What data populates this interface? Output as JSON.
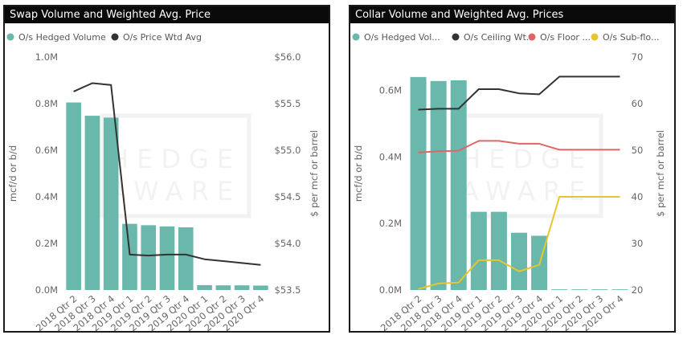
{
  "chart_data": [
    {
      "type": "bar",
      "title": "Swap Volume and Weighted Avg. Price",
      "categories": [
        "2018 Qtr 2",
        "2018 Qtr 3",
        "2018 Qtr 4",
        "2019 Qtr 1",
        "2019 Qtr 2",
        "2019 Qtr 3",
        "2019 Qtr 4",
        "2020 Qtr 1",
        "2020 Qtr 2",
        "2020 Qtr 3",
        "2020 Qtr 4"
      ],
      "ylabel": "mcf/d or b/d",
      "y2label": "$ per mcf or barrel",
      "ylim": [
        0,
        1000000
      ],
      "y2lim": [
        53.5,
        56.0
      ],
      "yticks": [
        {
          "value": 0,
          "label": "0.0M"
        },
        {
          "value": 200000,
          "label": "0.2M"
        },
        {
          "value": 400000,
          "label": "0.4M"
        },
        {
          "value": 600000,
          "label": "0.6M"
        },
        {
          "value": 800000,
          "label": "0.8M"
        },
        {
          "value": 1000000,
          "label": "1.0M"
        }
      ],
      "y2ticks": [
        {
          "value": 53.5,
          "label": "$53.5"
        },
        {
          "value": 54.0,
          "label": "$54.0"
        },
        {
          "value": 54.5,
          "label": "$54.5"
        },
        {
          "value": 55.0,
          "label": "$55.0"
        },
        {
          "value": 55.5,
          "label": "$55.5"
        },
        {
          "value": 56.0,
          "label": "$56.0"
        }
      ],
      "legend": [
        {
          "label": "O/s Hedged Volume",
          "color": "#69b8ab"
        },
        {
          "label": "O/s Price Wtd Avg",
          "color": "#333333"
        }
      ],
      "bars": {
        "name": "O/s Hedged Volume",
        "color": "#69b8ab",
        "values": [
          805000,
          748000,
          740000,
          284000,
          278000,
          273000,
          269000,
          21000,
          20000,
          20000,
          19000
        ]
      },
      "lines": [
        {
          "name": "O/s Price Wtd Avg",
          "color": "#333333",
          "axis": "y2",
          "values": [
            55.63,
            55.72,
            55.7,
            53.88,
            53.87,
            53.88,
            53.88,
            53.83,
            53.81,
            53.79,
            53.77
          ]
        }
      ]
    },
    {
      "type": "bar",
      "title": "Collar Volume and Weighted Avg. Prices",
      "categories": [
        "2018 Qtr 2",
        "2018 Qtr 3",
        "2018 Qtr 4",
        "2019 Qtr 1",
        "2019 Qtr 2",
        "2019 Qtr 3",
        "2019 Qtr 4",
        "2020 Qtr 1",
        "2020 Qtr 2",
        "2020 Qtr 3",
        "2020 Qtr 4"
      ],
      "ylabel": "mcf/d or b/d",
      "y2label": "$ per mcf or barrel",
      "ylim": [
        0,
        700000
      ],
      "y2lim": [
        20,
        70
      ],
      "yticks": [
        {
          "value": 0,
          "label": "0.0M"
        },
        {
          "value": 200000,
          "label": "0.2M"
        },
        {
          "value": 400000,
          "label": "0.4M"
        },
        {
          "value": 600000,
          "label": "0.6M"
        }
      ],
      "y2ticks": [
        {
          "value": 20,
          "label": "20"
        },
        {
          "value": 30,
          "label": "30"
        },
        {
          "value": 40,
          "label": "40"
        },
        {
          "value": 50,
          "label": "50"
        },
        {
          "value": 60,
          "label": "60"
        },
        {
          "value": 70,
          "label": "70"
        }
      ],
      "legend": [
        {
          "label": "O/s Hedged Vol...",
          "color": "#69b8ab"
        },
        {
          "label": "O/s Ceiling Wt...",
          "color": "#333333"
        },
        {
          "label": "O/s Floor ...",
          "color": "#e06666"
        },
        {
          "label": "O/s Sub-flo...",
          "color": "#e6c62c"
        }
      ],
      "bars": {
        "name": "O/s Hedged Volume",
        "color": "#69b8ab",
        "values": [
          640000,
          628000,
          630000,
          235000,
          235000,
          172000,
          163000,
          2000,
          2000,
          2000,
          2000
        ]
      },
      "lines": [
        {
          "name": "O/s Ceiling Wtd Avg",
          "color": "#333333",
          "axis": "y2",
          "values": [
            58.7,
            58.9,
            58.9,
            63.1,
            63.1,
            62.2,
            62.0,
            65.8,
            65.8,
            65.8,
            65.8
          ]
        },
        {
          "name": "O/s Floor Wtd Avg",
          "color": "#e06666",
          "axis": "y2",
          "values": [
            49.5,
            49.8,
            49.9,
            52.0,
            52.0,
            51.4,
            51.4,
            50.1,
            50.1,
            50.1,
            50.1
          ]
        },
        {
          "name": "O/s Sub-floor Wtd Avg",
          "color": "#e6c62c",
          "axis": "y2",
          "values": [
            20.2,
            21.4,
            21.6,
            26.4,
            26.4,
            24.0,
            25.4,
            40.0,
            40.0,
            40.0,
            40.0
          ]
        }
      ]
    }
  ],
  "watermark": {
    "line1": "HEDGE",
    "line2": "AWARE"
  }
}
